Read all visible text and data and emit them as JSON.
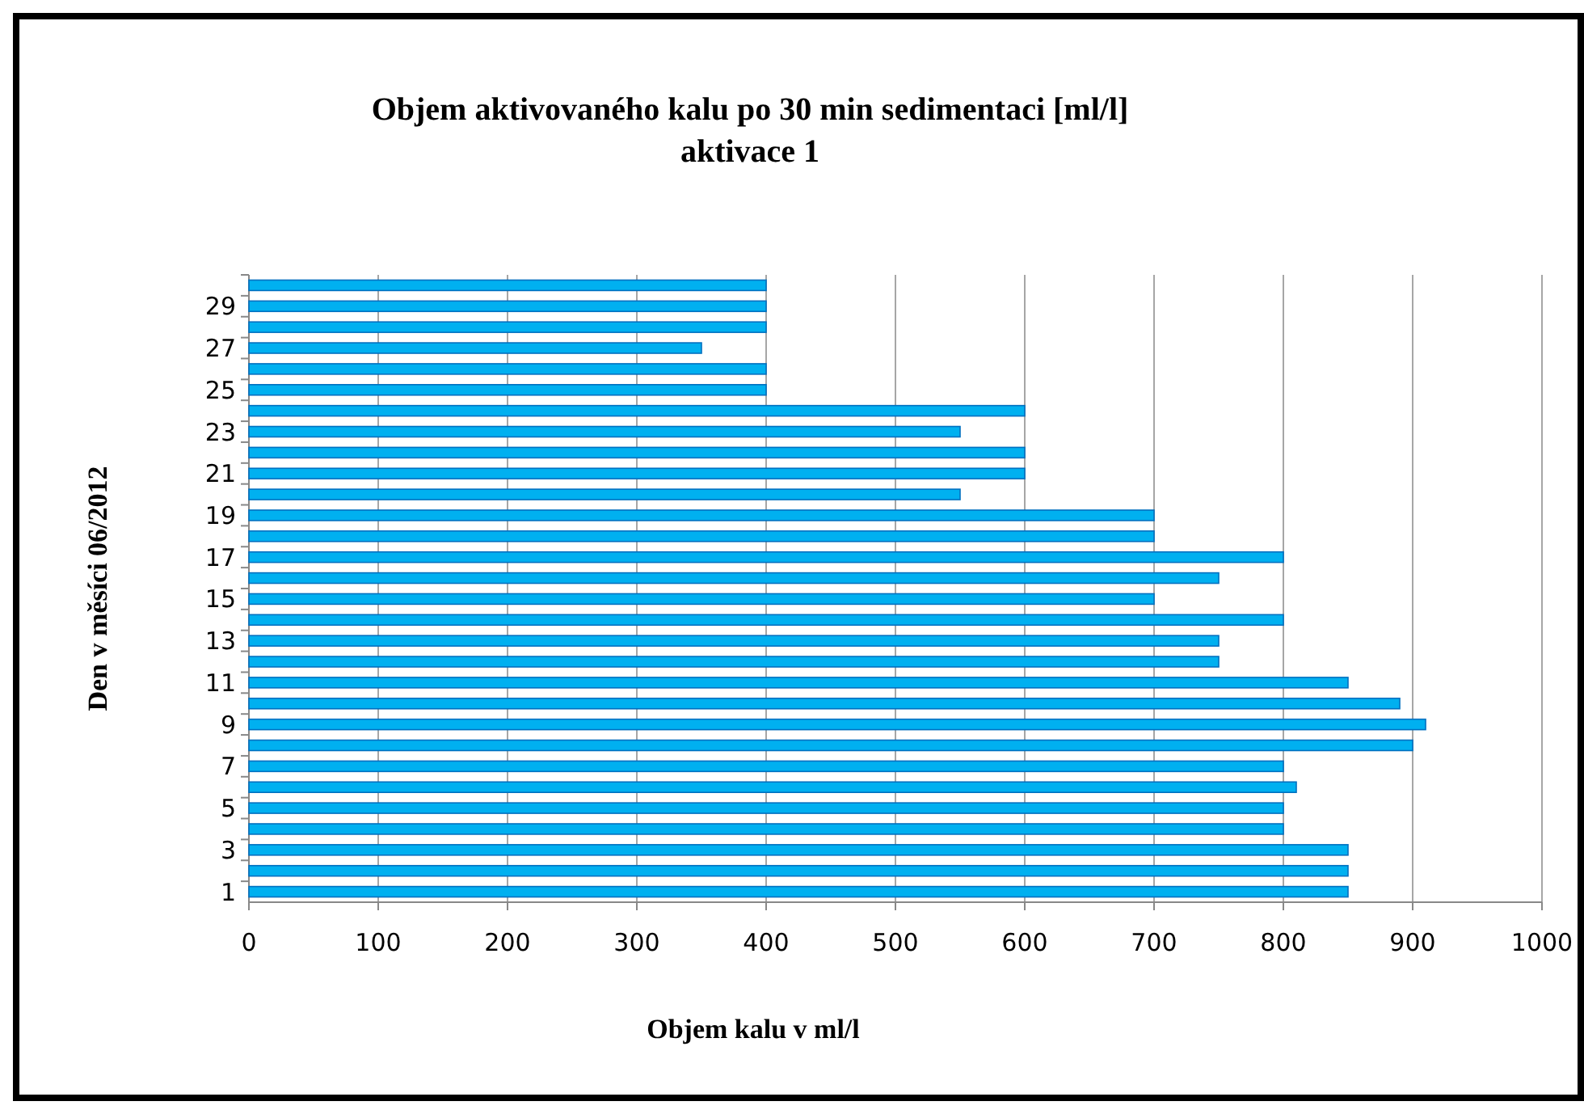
{
  "chart_data": {
    "type": "bar",
    "orientation": "horizontal",
    "title": "Objem aktivovaného kalu po 30 min sedimentaci [ml/l]",
    "subtitle": "aktivace 1",
    "xlabel": "Objem kalu v ml/l",
    "ylabel": "Den v měsíci 06/2012",
    "categories": [
      null,
      "29",
      null,
      "27",
      null,
      "25",
      null,
      "23",
      null,
      "21",
      null,
      "19",
      null,
      "17",
      null,
      "15",
      null,
      "13",
      null,
      "11",
      null,
      "9",
      null,
      "7",
      null,
      "5",
      null,
      "3",
      null,
      "1"
    ],
    "values": [
      400,
      400,
      400,
      350,
      400,
      400,
      600,
      550,
      600,
      600,
      550,
      700,
      700,
      800,
      750,
      700,
      800,
      750,
      750,
      850,
      890,
      910,
      900,
      800,
      810,
      800,
      800,
      850,
      850,
      850
    ],
    "color": "#00b0f0",
    "xlim": [
      0,
      1000
    ],
    "xticks": [
      0,
      100,
      200,
      300,
      400,
      500,
      600,
      700,
      800,
      900,
      1000
    ],
    "grid": "x"
  }
}
